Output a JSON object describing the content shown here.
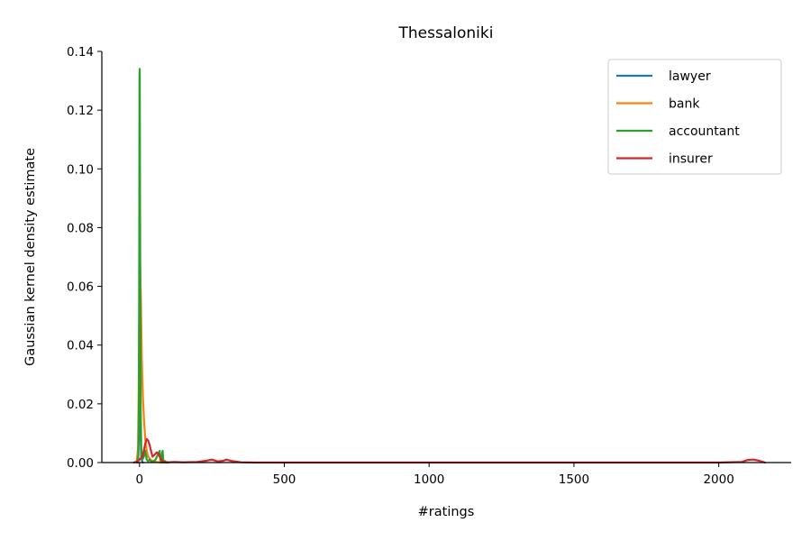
{
  "chart_data": {
    "type": "line",
    "title": "Thessaloniki",
    "xlabel": "#ratings",
    "ylabel": "Gaussian kernel density estimate",
    "xlim": [
      -130,
      2250
    ],
    "ylim": [
      0,
      0.14
    ],
    "xticks": [
      0,
      500,
      1000,
      1500,
      2000
    ],
    "xtick_labels": [
      "0",
      "500",
      "1000",
      "1500",
      "2000"
    ],
    "yticks": [
      0,
      0.02,
      0.04,
      0.06,
      0.08,
      0.1,
      0.12,
      0.14
    ],
    "ytick_labels": [
      "0.00",
      "0.02",
      "0.04",
      "0.06",
      "0.08",
      "0.10",
      "0.12",
      "0.14"
    ],
    "grid": false,
    "legend_position": "top-right",
    "series": [
      {
        "name": "lawyer",
        "color": "#1f77b4",
        "x": [
          -5,
          -2,
          0,
          2,
          4,
          6,
          9,
          12
        ],
        "y": [
          0,
          0.01,
          0.03,
          0.02,
          0.008,
          0.002,
          0.0005,
          0
        ]
      },
      {
        "name": "bank",
        "color": "#ff7f0e",
        "x": [
          -10,
          -5,
          -2,
          0,
          2,
          5,
          8,
          12,
          16,
          20,
          25,
          30,
          40,
          60,
          80
        ],
        "y": [
          0,
          0.005,
          0.03,
          0.062,
          0.068,
          0.055,
          0.035,
          0.022,
          0.014,
          0.008,
          0.004,
          0.002,
          0.0008,
          0.0002,
          0
        ]
      },
      {
        "name": "accountant",
        "color": "#2ca02c",
        "x": [
          -8,
          -4,
          -2,
          -1,
          0,
          1,
          2,
          3,
          4,
          6,
          8,
          10,
          15,
          20,
          25,
          30,
          35,
          40,
          45,
          50,
          55,
          60,
          65,
          70,
          72,
          75,
          78,
          80,
          82,
          85,
          88,
          90,
          100
        ],
        "y": [
          0,
          0.002,
          0.02,
          0.07,
          0.132,
          0.134,
          0.09,
          0.05,
          0.02,
          0.006,
          0.002,
          0.001,
          0.002,
          0.004,
          0.001,
          0.0005,
          0.001,
          0.0005,
          0.0002,
          0.0005,
          0.001,
          0.002,
          0.003,
          0.004,
          0.001,
          0,
          0.003,
          0.004,
          0.001,
          0,
          0.0005,
          0,
          0
        ]
      },
      {
        "name": "insurer",
        "color": "#d62728",
        "x": [
          -20,
          -5,
          0,
          10,
          15,
          20,
          25,
          30,
          35,
          40,
          45,
          50,
          55,
          60,
          65,
          70,
          75,
          80,
          85,
          90,
          100,
          120,
          150,
          200,
          230,
          250,
          270,
          290,
          300,
          320,
          350,
          400,
          600,
          1000,
          1500,
          2000,
          2080,
          2100,
          2120,
          2140,
          2160
        ],
        "y": [
          0,
          0.0005,
          0.001,
          0.002,
          0.004,
          0.0065,
          0.008,
          0.0075,
          0.006,
          0.004,
          0.002,
          0.0025,
          0.003,
          0.0035,
          0.003,
          0.002,
          0.001,
          0.0005,
          0.0003,
          0.0002,
          0.0001,
          0.0002,
          0.0001,
          0.0002,
          0.0006,
          0.001,
          0.0004,
          0.0006,
          0.001,
          0.0005,
          0.0001,
          0,
          0,
          0,
          0,
          0,
          0.0002,
          0.0009,
          0.001,
          0.0006,
          0
        ]
      }
    ]
  }
}
